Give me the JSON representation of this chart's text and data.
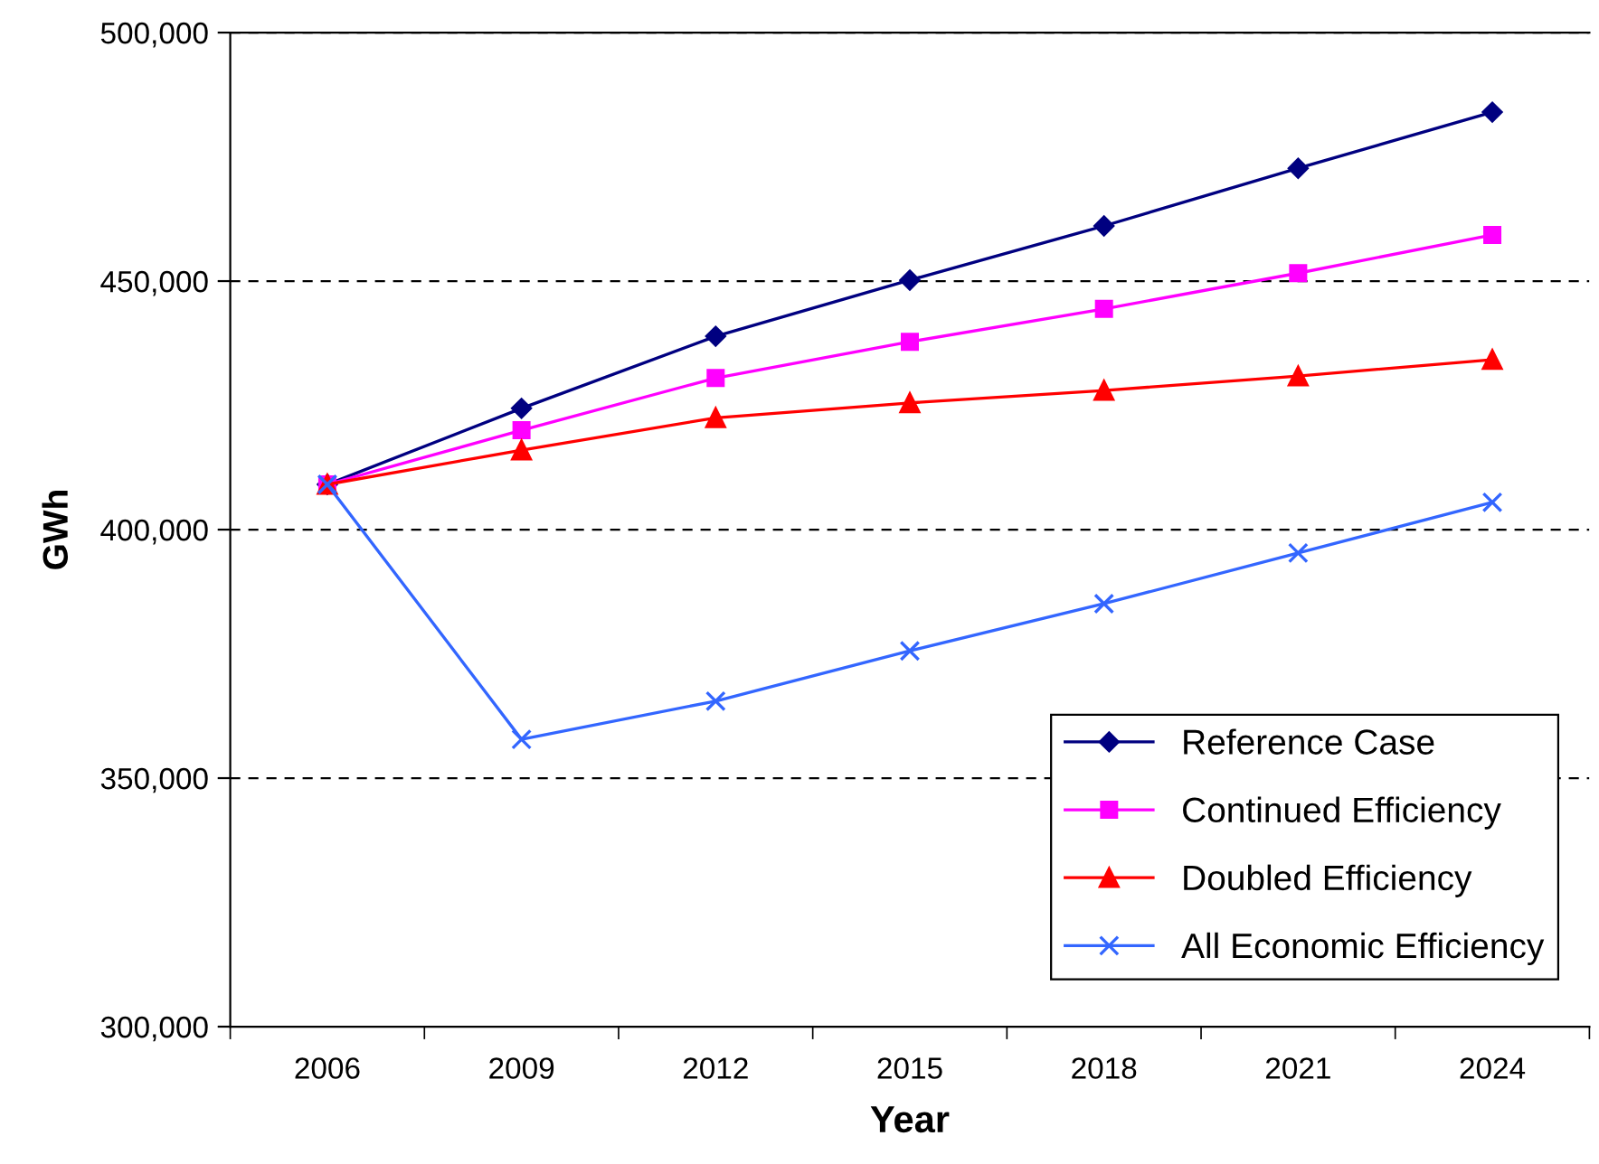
{
  "chart_data": {
    "type": "line",
    "xlabel": "Year",
    "ylabel": "GWh",
    "categories": [
      "2006",
      "2009",
      "2012",
      "2015",
      "2018",
      "2021",
      "2024"
    ],
    "series": [
      {
        "name": "Reference Case",
        "color": "#000080",
        "marker": "diamond",
        "values": [
          409100,
          424400,
          438900,
          450200,
          461100,
          472700,
          484000
        ]
      },
      {
        "name": "Continued Efficiency",
        "color": "#ff00ff",
        "marker": "square",
        "values": [
          409100,
          420000,
          430500,
          437800,
          444400,
          451600,
          459300
        ]
      },
      {
        "name": "Doubled Efficiency",
        "color": "#ff0000",
        "marker": "triangle",
        "values": [
          409100,
          416000,
          422500,
          425500,
          428000,
          430900,
          434200
        ]
      },
      {
        "name": "All Economic Efficiency",
        "color": "#3366ff",
        "marker": "cross",
        "values": [
          409100,
          357800,
          365500,
          375600,
          385100,
          395300,
          405500
        ]
      }
    ],
    "ylim": [
      300000,
      500000
    ],
    "yticks": [
      {
        "value": 300000,
        "label": "300,000"
      },
      {
        "value": 350000,
        "label": "350,000"
      },
      {
        "value": 400000,
        "label": "400,000"
      },
      {
        "value": 450000,
        "label": "450,000"
      },
      {
        "value": 500000,
        "label": "500,000"
      }
    ],
    "grid": "y",
    "legend": "bottom right",
    "line_style": "solid"
  }
}
